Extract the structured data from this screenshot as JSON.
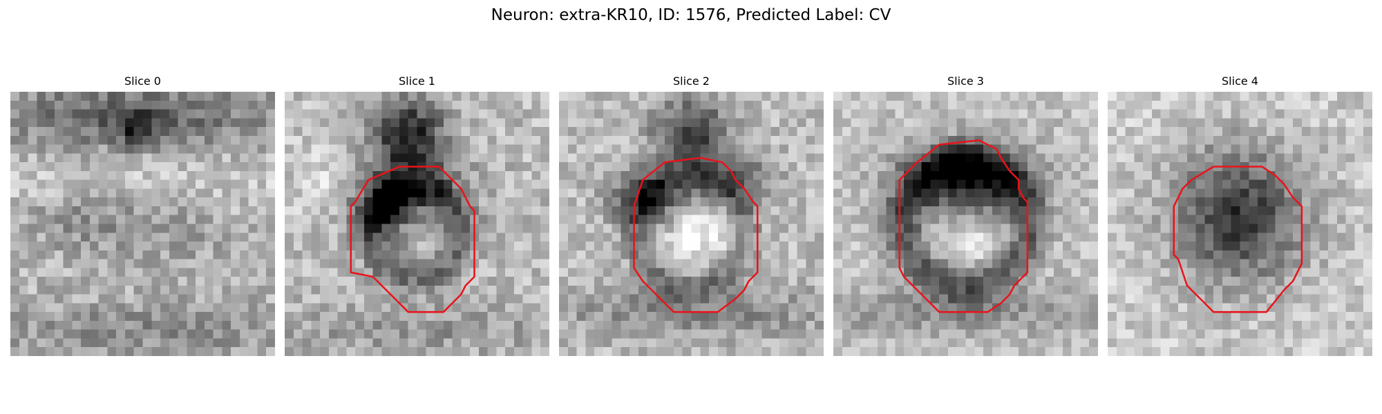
{
  "figure": {
    "title": "Neuron: extra-KR10, ID: 1576, Predicted Label: CV"
  },
  "colors": {
    "background": "#ffffff",
    "contour": "#e8141b",
    "colormap": "grayscale"
  },
  "slices": [
    {
      "title": "Slice 0",
      "has_contour": false
    },
    {
      "title": "Slice 1",
      "has_contour": true
    },
    {
      "title": "Slice 2",
      "has_contour": true
    },
    {
      "title": "Slice 3",
      "has_contour": true
    },
    {
      "title": "Slice 4",
      "has_contour": true
    }
  ]
}
